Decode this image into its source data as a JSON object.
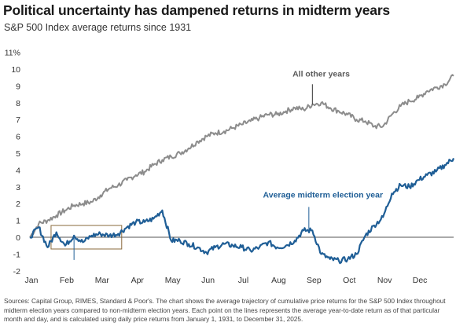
{
  "title": "Political uncertainty has dampened returns in midterm years",
  "subtitle": "S&P 500 Index average returns since 1931",
  "source": "Sources: Capital Group, RIMES, Standard & Poor's. The chart shows the average trajectory of cumulative price returns for the S&P 500 Index throughout midterm election years compared to non-midterm election years. Each point on the lines represents the average year-to-date return as of that particular month and day, and is calculated using daily price returns from January 1, 1931, to December 31, 2025.",
  "chart_data": {
    "type": "line",
    "ylim": [
      -2,
      11
    ],
    "y_ticks": [
      -2,
      -1,
      0,
      1,
      2,
      3,
      4,
      5,
      6,
      7,
      8,
      9,
      10,
      11
    ],
    "y_tick_labels": [
      "-2",
      "-1",
      "0",
      "1",
      "2",
      "3",
      "4",
      "5",
      "6",
      "7",
      "8",
      "9",
      "10",
      "11%"
    ],
    "x_ticks": [
      "Jan",
      "Feb",
      "Mar",
      "Apr",
      "May",
      "Jun",
      "Jul",
      "Aug",
      "Sep",
      "Oct",
      "Nov",
      "Dec"
    ],
    "grid": false,
    "x": [
      0,
      0.25,
      0.5,
      0.75,
      1,
      1.25,
      1.5,
      1.75,
      2,
      2.25,
      2.5,
      2.75,
      3,
      3.25,
      3.5,
      3.75,
      4,
      4.25,
      4.5,
      4.75,
      5,
      5.25,
      5.5,
      5.75,
      6,
      6.25,
      6.5,
      6.75,
      7,
      7.25,
      7.5,
      7.75,
      8,
      8.25,
      8.5,
      8.75,
      9,
      9.25,
      9.5,
      9.75,
      10,
      10.25,
      10.5,
      10.75,
      11,
      11.25,
      11.5,
      11.75,
      12
    ],
    "series": [
      {
        "name": "All other years",
        "color": "#8c8c8c",
        "values": [
          0,
          0.8,
          1.0,
          1.3,
          1.6,
          1.9,
          2.0,
          2.1,
          2.5,
          2.9,
          3.1,
          3.4,
          3.7,
          3.9,
          4.3,
          4.6,
          4.8,
          5.0,
          5.3,
          5.7,
          6.0,
          6.2,
          6.3,
          6.5,
          6.7,
          6.9,
          7.1,
          7.3,
          7.3,
          7.5,
          7.7,
          7.6,
          7.9,
          8.0,
          7.7,
          7.5,
          7.3,
          7.0,
          6.9,
          6.6,
          6.6,
          7.3,
          7.8,
          8.1,
          8.3,
          8.7,
          8.9,
          9.1,
          9.6
        ]
      },
      {
        "name": "Average midterm election year",
        "color": "#1f5e96",
        "values": [
          0,
          0.6,
          -0.6,
          0.3,
          -0.5,
          0.1,
          -0.3,
          0.1,
          0.2,
          0.1,
          0.2,
          0.6,
          0.9,
          0.9,
          1.1,
          1.6,
          -0.2,
          -0.2,
          -0.4,
          -0.6,
          -0.9,
          -0.6,
          -0.4,
          -0.5,
          -0.6,
          -0.8,
          -0.6,
          -0.3,
          -0.6,
          -0.5,
          -0.2,
          0.4,
          0.4,
          -1.0,
          -1.3,
          -1.4,
          -1.3,
          -1.0,
          0.1,
          0.7,
          1.2,
          2.6,
          3.1,
          3.0,
          3.4,
          3.7,
          3.9,
          4.3,
          4.7
        ]
      }
    ],
    "annotations": {
      "all_other_years": "All other years",
      "midterm": "Average midterm election year"
    }
  }
}
